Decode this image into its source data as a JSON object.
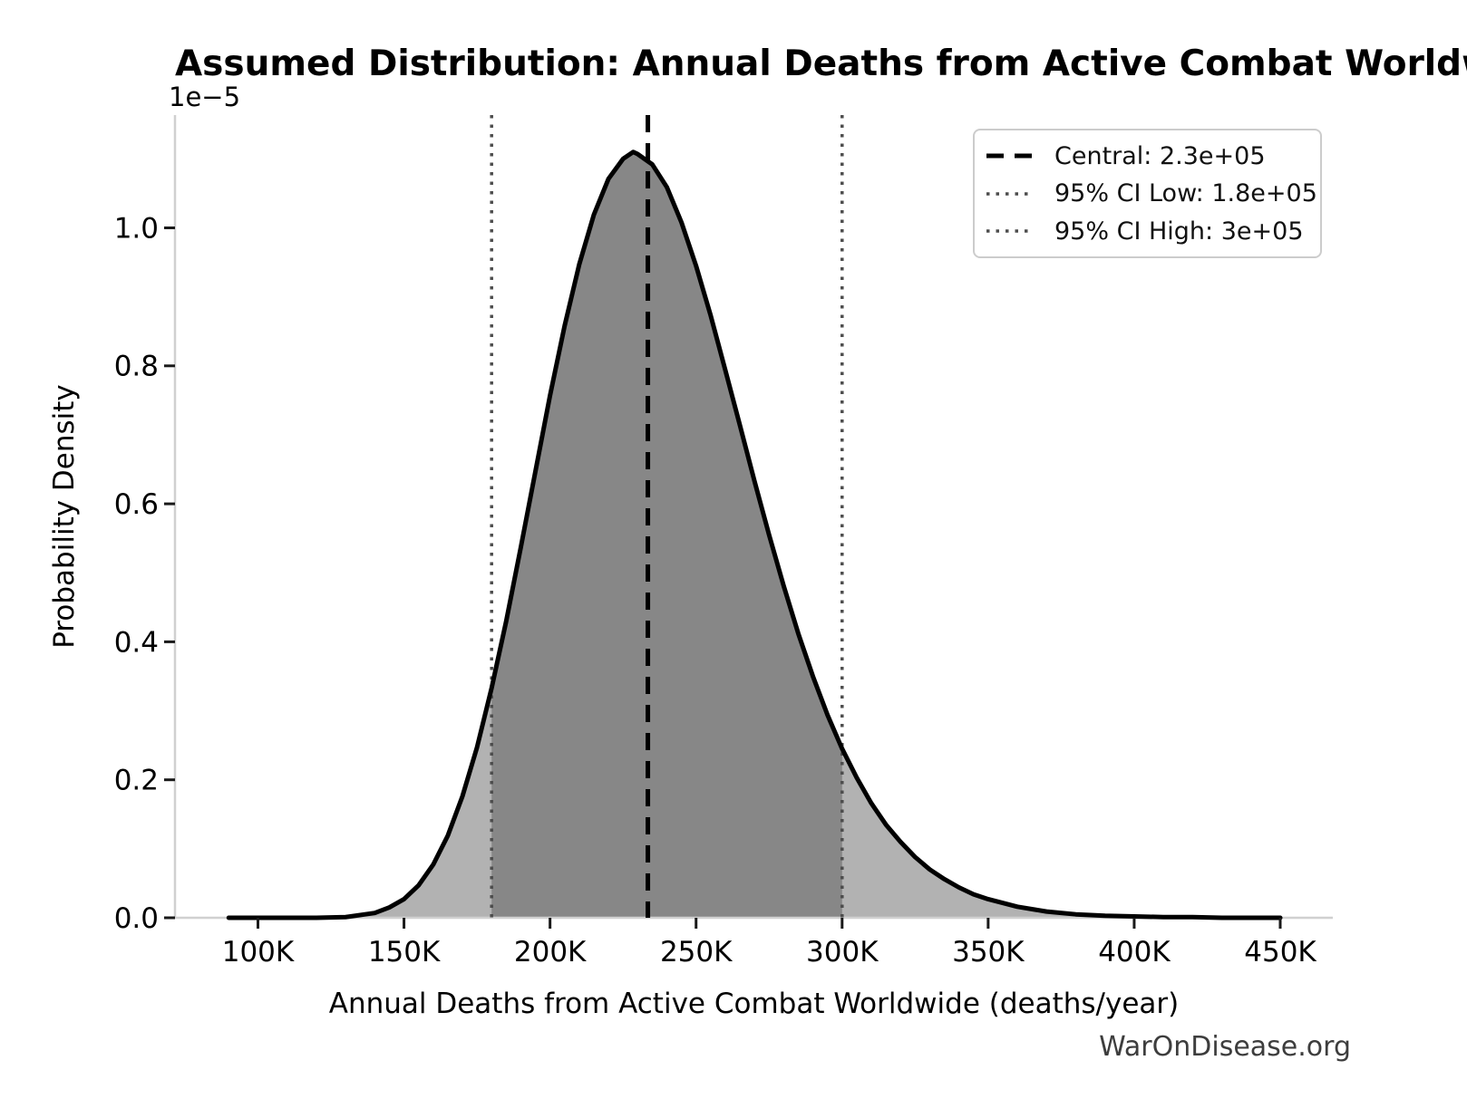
{
  "watermark": "WarOnDisease.org",
  "chart_data": {
    "type": "area",
    "subtype": "probability-density-curve",
    "title": "Assumed Distribution: Annual Deaths from Active Combat Worldwide",
    "xlabel": "Annual Deaths from Active Combat Worldwide (deaths/year)",
    "ylabel": "Probability Density",
    "y_scale_offset_label": "1e−5",
    "grid": false,
    "xlim": [
      71600,
      468000
    ],
    "ylim_1e5": [
      0,
      1.1635
    ],
    "x_ticks": {
      "values": [
        100000,
        150000,
        200000,
        250000,
        300000,
        350000,
        400000,
        450000
      ],
      "labels": [
        "100K",
        "150K",
        "200K",
        "250K",
        "300K",
        "350K",
        "400K",
        "450K"
      ]
    },
    "y_ticks": {
      "values": [
        0.0,
        0.2,
        0.4,
        0.6,
        0.8,
        1.0
      ],
      "labels": [
        "0.0",
        "0.2",
        "0.4",
        "0.6",
        "0.8",
        "1.0"
      ]
    },
    "vlines": [
      {
        "name": "central",
        "value": 233500,
        "style": "dashed",
        "color": "#000000",
        "width": 5,
        "dash": "19 12"
      },
      {
        "name": "ci-low",
        "value": 180000,
        "style": "dotted",
        "color": "#4d4d4d",
        "width": 3.5,
        "dash": "3.5 7"
      },
      {
        "name": "ci-high",
        "value": 300000,
        "style": "dotted",
        "color": "#4d4d4d",
        "width": 3.5,
        "dash": "3.5 7"
      }
    ],
    "shaded_interval": [
      180000,
      300000
    ],
    "curve": {
      "x_thousands": [
        90,
        100,
        110,
        120,
        130,
        140,
        145,
        150,
        155,
        160,
        165,
        170,
        175,
        180,
        185,
        190,
        195,
        200,
        205,
        210,
        215,
        220,
        225,
        228.5,
        230,
        235,
        240,
        245,
        250,
        255,
        260,
        265,
        270,
        275,
        280,
        285,
        290,
        295,
        300,
        305,
        310,
        315,
        320,
        325,
        330,
        335,
        340,
        345,
        350,
        360,
        370,
        380,
        390,
        400,
        410,
        420,
        430,
        440,
        450
      ],
      "density_1e5": [
        0,
        0,
        0,
        0,
        0.001,
        0.007,
        0.015,
        0.027,
        0.047,
        0.077,
        0.119,
        0.176,
        0.247,
        0.333,
        0.43,
        0.537,
        0.647,
        0.757,
        0.858,
        0.947,
        1.019,
        1.071,
        1.1,
        1.11,
        1.107,
        1.092,
        1.059,
        1.008,
        0.945,
        0.873,
        0.794,
        0.714,
        0.633,
        0.555,
        0.481,
        0.412,
        0.35,
        0.294,
        0.245,
        0.203,
        0.166,
        0.135,
        0.11,
        0.088,
        0.07,
        0.056,
        0.044,
        0.034,
        0.027,
        0.016,
        0.009,
        0.005,
        0.003,
        0.002,
        0.001,
        0.001,
        0,
        0,
        0
      ],
      "peak": {
        "x": 228500,
        "density_1e5": 1.11
      }
    },
    "legend": {
      "position": "upper right",
      "items": [
        {
          "label": "Central: 2.3e+05",
          "style": "dashed",
          "color": "#000000",
          "dash": "19 12",
          "width": 5
        },
        {
          "label": "95% CI Low: 1.8e+05",
          "style": "dotted",
          "color": "#4d4d4d",
          "dash": "3.5 7",
          "width": 3.5
        },
        {
          "label": "95% CI High: 3e+05",
          "style": "dotted",
          "color": "#4d4d4d",
          "dash": "3.5 7",
          "width": 3.5
        }
      ]
    },
    "colors": {
      "curve": "#000000",
      "fill_light": "#b2b2b2",
      "fill_dark": "#878787",
      "spine": "#d0d0d0",
      "tick_mark": "#1a1a1a",
      "text": "#000000",
      "watermark": "#3d3d3d"
    }
  }
}
